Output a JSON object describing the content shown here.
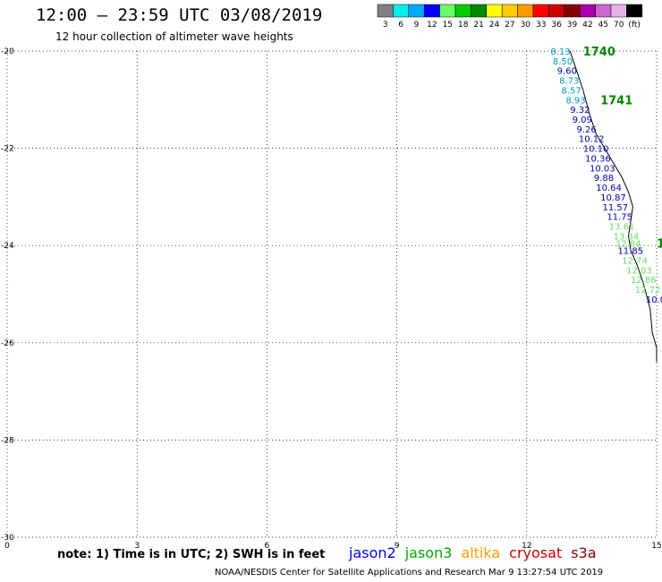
{
  "header": {
    "title": "12:00 – 23:59 UTC 03/08/2019",
    "subtitle": "12 hour collection of altimeter wave heights"
  },
  "legend": {
    "colors": [
      "#808080",
      "#00eeee",
      "#00aaff",
      "#0000ff",
      "#66ff66",
      "#00cc00",
      "#008800",
      "#ffff00",
      "#ffcc00",
      "#ff9900",
      "#ff0000",
      "#cc0000",
      "#880000",
      "#aa00aa",
      "#cc66cc",
      "#e6b3e6",
      "#000000"
    ],
    "labels": [
      "3",
      "6",
      "9",
      "12",
      "15",
      "18",
      "21",
      "24",
      "27",
      "30",
      "33",
      "36",
      "39",
      "42",
      "45",
      "70",
      "(ft)"
    ]
  },
  "footer": {
    "note": "note: 1) Time is in UTC; 2) SWH is in feet",
    "satellites": [
      {
        "name": "jason2",
        "color": "#0000ff"
      },
      {
        "name": "jason3",
        "color": "#00aa00"
      },
      {
        "name": "altika",
        "color": "#ff9900"
      },
      {
        "name": "cryosat",
        "color": "#cc0000"
      },
      {
        "name": "s3a",
        "color": "#880000"
      }
    ],
    "credit": "NOAA/NESDIS Center for Satellite Applications and Research   Mar  9 13:27:54 UTC 2019"
  },
  "chart_data": {
    "type": "scatter",
    "xlim": [
      0,
      15
    ],
    "ylim": [
      -30,
      -20
    ],
    "xticks": [
      0,
      3,
      6,
      9,
      12,
      15
    ],
    "yticks": [
      -20,
      -22,
      -24,
      -26,
      -28,
      -30
    ],
    "ytick_labels": [
      "-20",
      "-22",
      "-24",
      "-26",
      "-28",
      "-30"
    ],
    "grid": true,
    "track": [
      [
        13.0,
        -20.0
      ],
      [
        13.15,
        -20.4
      ],
      [
        13.3,
        -20.8
      ],
      [
        13.45,
        -21.3
      ],
      [
        13.6,
        -21.7
      ],
      [
        13.8,
        -22.0
      ],
      [
        14.0,
        -22.3
      ],
      [
        14.2,
        -22.6
      ],
      [
        14.35,
        -22.9
      ],
      [
        14.45,
        -23.2
      ],
      [
        14.4,
        -23.5
      ],
      [
        14.35,
        -23.8
      ],
      [
        14.4,
        -24.1
      ],
      [
        14.55,
        -24.4
      ],
      [
        14.7,
        -24.8
      ],
      [
        14.85,
        -25.3
      ],
      [
        14.9,
        -25.8
      ],
      [
        15.0,
        -26.1
      ],
      [
        15.0,
        -26.4
      ]
    ],
    "points": [
      {
        "label": "8.13",
        "x": 12.55,
        "y": -20.0,
        "color": "#0099cc"
      },
      {
        "label": "8.50",
        "x": 12.6,
        "y": -20.2,
        "color": "#0099cc"
      },
      {
        "label": "9.60",
        "x": 12.7,
        "y": -20.4,
        "color": "#0000aa"
      },
      {
        "label": "8.73",
        "x": 12.75,
        "y": -20.6,
        "color": "#0099cc"
      },
      {
        "label": "8.57",
        "x": 12.8,
        "y": -20.8,
        "color": "#0099cc"
      },
      {
        "label": "8.93",
        "x": 12.9,
        "y": -21.0,
        "color": "#0099cc"
      },
      {
        "label": "9.32",
        "x": 13.0,
        "y": -21.2,
        "color": "#0000aa"
      },
      {
        "label": "9.09",
        "x": 13.05,
        "y": -21.4,
        "color": "#0000aa"
      },
      {
        "label": "9.26",
        "x": 13.15,
        "y": -21.6,
        "color": "#0000aa"
      },
      {
        "label": "10.12",
        "x": 13.2,
        "y": -21.8,
        "color": "#0000aa"
      },
      {
        "label": "10.10",
        "x": 13.3,
        "y": -22.0,
        "color": "#0000aa"
      },
      {
        "label": "10.36",
        "x": 13.35,
        "y": -22.2,
        "color": "#0000aa"
      },
      {
        "label": "10.03",
        "x": 13.45,
        "y": -22.4,
        "color": "#0000aa"
      },
      {
        "label": "9.88",
        "x": 13.55,
        "y": -22.6,
        "color": "#0000aa"
      },
      {
        "label": "10.64",
        "x": 13.6,
        "y": -22.8,
        "color": "#0000aa"
      },
      {
        "label": "10.87",
        "x": 13.7,
        "y": -23.0,
        "color": "#0000aa"
      },
      {
        "label": "11.57",
        "x": 13.75,
        "y": -23.2,
        "color": "#0000aa"
      },
      {
        "label": "11.75",
        "x": 13.85,
        "y": -23.4,
        "color": "#0000aa"
      },
      {
        "label": "13.61",
        "x": 13.9,
        "y": -23.6,
        "color": "#66dd66"
      },
      {
        "label": "13.34",
        "x": 14.0,
        "y": -23.8,
        "color": "#66dd66"
      },
      {
        "label": "12.84",
        "x": 14.05,
        "y": -23.95,
        "color": "#66dd66"
      },
      {
        "label": "11.85",
        "x": 14.1,
        "y": -24.1,
        "color": "#0000aa"
      },
      {
        "label": "12.74",
        "x": 14.2,
        "y": -24.3,
        "color": "#66dd66"
      },
      {
        "label": "12.03",
        "x": 14.3,
        "y": -24.5,
        "color": "#66dd66"
      },
      {
        "label": "12.86",
        "x": 14.4,
        "y": -24.7,
        "color": "#66dd66"
      },
      {
        "label": "12.72",
        "x": 14.5,
        "y": -24.9,
        "color": "#66dd66"
      },
      {
        "label": "10.01",
        "x": 14.75,
        "y": -25.1,
        "color": "#0000aa"
      }
    ],
    "annotations": [
      {
        "label": "1740",
        "x": 13.3,
        "y": -20.0,
        "color": "#008800"
      },
      {
        "label": "1741",
        "x": 13.7,
        "y": -21.0,
        "color": "#008800"
      },
      {
        "label": "1",
        "x": 15.0,
        "y": -23.95,
        "color": "#008800"
      }
    ]
  }
}
